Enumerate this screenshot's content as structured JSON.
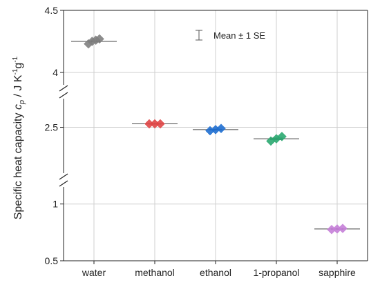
{
  "chart_data": {
    "type": "scatter",
    "categories": [
      "water",
      "methanol",
      "ethanol",
      "1-propanol",
      "sapphire"
    ],
    "ylabel": {
      "prefix": "Specific heat capacity ",
      "symbol": "c",
      "subscript": "p",
      "unit_main": " / J K",
      "exp1": "-1",
      "unit_mid": "g",
      "exp2": "-1"
    },
    "y_segments": [
      {
        "range": [
          3.9,
          4.5
        ],
        "ticks": [
          {
            "value": 4,
            "label": "4"
          },
          {
            "value": 4.5,
            "label": "4.5"
          }
        ]
      },
      {
        "range": [
          2.1,
          2.75
        ],
        "ticks": [
          {
            "value": 2.5,
            "label": "2.5"
          }
        ]
      },
      {
        "range": [
          0.5,
          1.15
        ],
        "ticks": [
          {
            "value": 0.5,
            "label": "0.5"
          },
          {
            "value": 1,
            "label": "1"
          }
        ]
      }
    ],
    "axis_breaks": "two breaks on y-axis",
    "grid": true,
    "legend": {
      "label": "Mean ± 1 SE",
      "placement": "top-center"
    },
    "series": [
      {
        "marker": "diamond",
        "points": [
          {
            "category": "water",
            "values": [
              4.23,
              4.25,
              4.26,
              4.27
            ],
            "mean": 4.25,
            "se": 0.005,
            "color": "#7f7f7f"
          },
          {
            "category": "methanol",
            "values": [
              2.53,
              2.53,
              2.53
            ],
            "mean": 2.53,
            "se": 0.002,
            "color": "#e04646"
          },
          {
            "category": "ethanol",
            "values": [
              2.47,
              2.48,
              2.49
            ],
            "mean": 2.48,
            "se": 0.004,
            "color": "#1f6fd1"
          },
          {
            "category": "1-propanol",
            "values": [
              2.38,
              2.4,
              2.42
            ],
            "mean": 2.4,
            "se": 0.007,
            "color": "#2aa870"
          },
          {
            "category": "sapphire",
            "values": [
              0.775,
              0.78,
              0.785
            ],
            "mean": 0.78,
            "se": 0.003,
            "color": "#c57fd8"
          }
        ]
      }
    ]
  }
}
